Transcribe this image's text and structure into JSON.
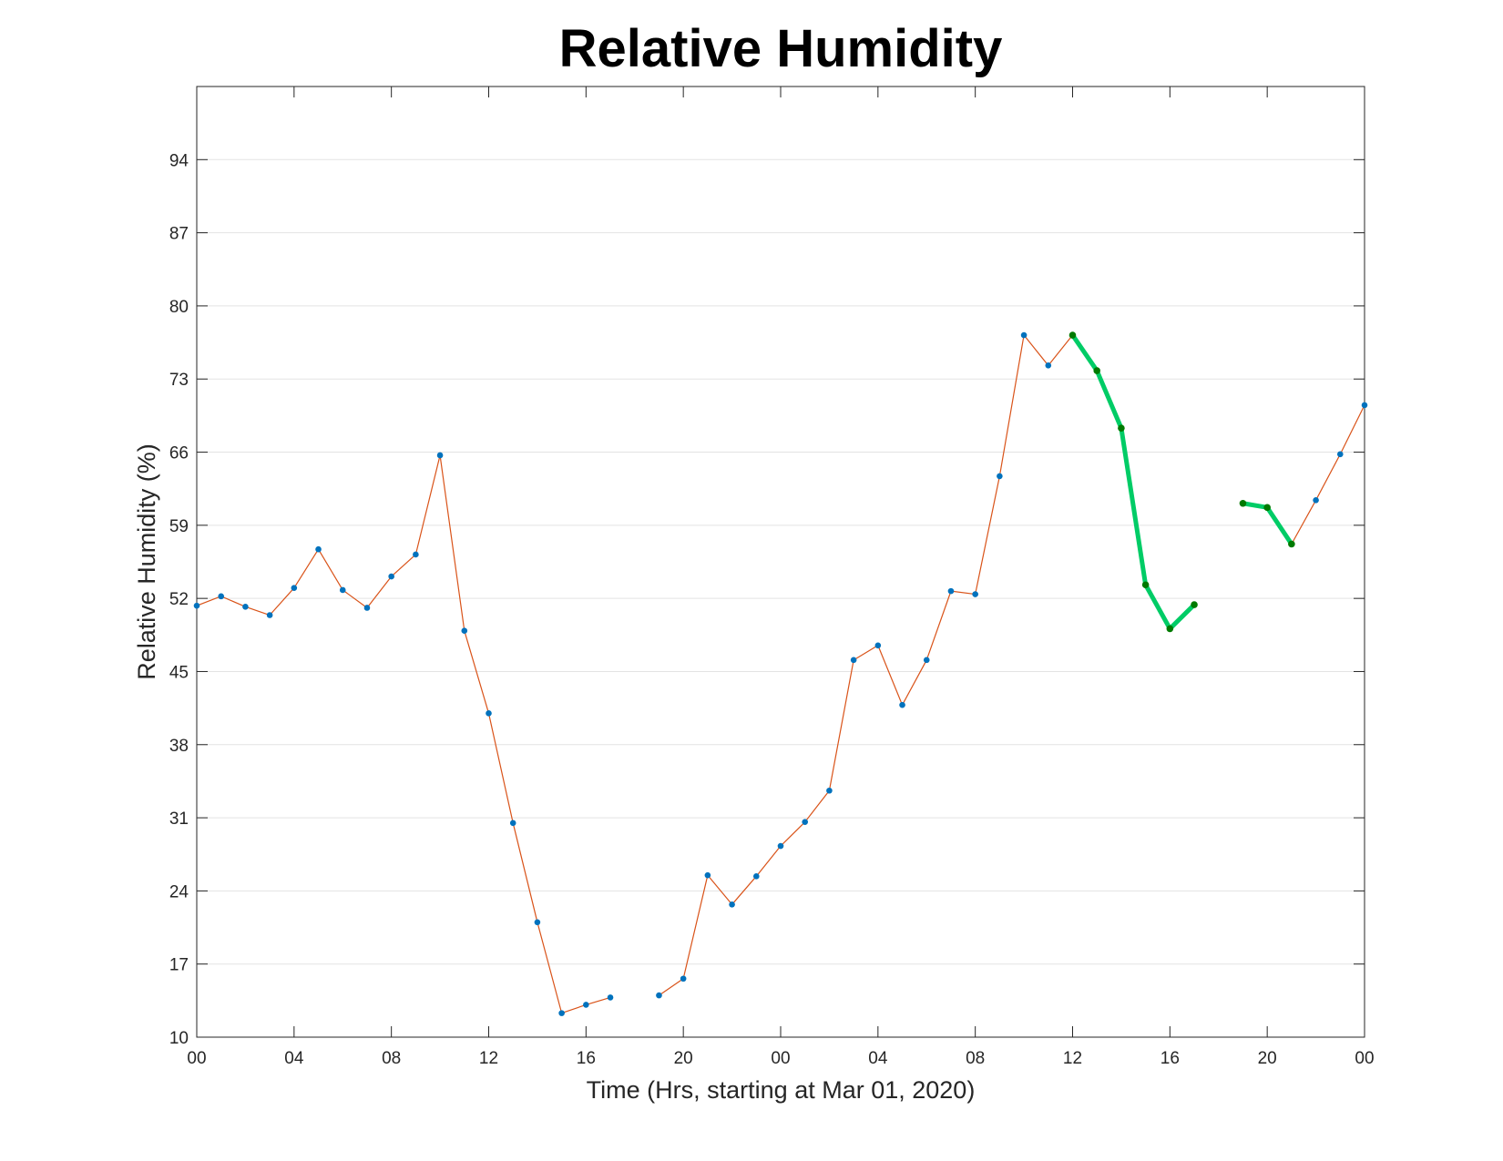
{
  "chart_data": {
    "type": "line",
    "title": "Relative Humidity",
    "xlabel": "Time (Hrs, starting at Mar 01, 2020)",
    "ylabel": "Relative Humidity (%)",
    "ylim": [
      10,
      101
    ],
    "yticks": [
      10,
      17,
      24,
      31,
      38,
      45,
      52,
      59,
      66,
      73,
      80,
      87,
      94
    ],
    "xlim": [
      0,
      48
    ],
    "xticks": [
      0,
      4,
      8,
      12,
      16,
      20,
      24,
      28,
      32,
      36,
      40,
      44,
      48
    ],
    "xtick_labels": [
      "00",
      "04",
      "08",
      "12",
      "16",
      "20",
      "00",
      "04",
      "08",
      "12",
      "16",
      "20",
      "00"
    ],
    "grid": true,
    "colors": {
      "line": "#d95319",
      "marker": "#0072bd",
      "highlight": "#00cc66",
      "highlight_marker": "#007a00"
    },
    "series": [
      {
        "role": "main",
        "x": [
          0,
          1,
          2,
          3,
          4,
          5,
          6,
          7,
          8,
          9,
          10,
          11,
          12,
          13,
          14,
          15,
          16,
          17,
          18,
          19,
          20,
          21,
          22,
          23,
          24,
          25,
          26,
          27,
          28,
          29,
          30,
          31,
          32,
          33,
          34,
          35,
          36,
          37,
          38,
          39,
          40,
          41,
          42,
          43,
          44,
          45,
          46,
          47,
          48
        ],
        "y": [
          51.3,
          52.2,
          51.2,
          50.4,
          53.0,
          56.7,
          52.8,
          51.1,
          54.1,
          56.2,
          65.7,
          48.9,
          41.0,
          30.5,
          21.0,
          12.3,
          13.1,
          13.8,
          null,
          14.0,
          15.6,
          25.5,
          22.7,
          25.4,
          28.3,
          30.6,
          33.6,
          46.1,
          47.5,
          41.8,
          46.1,
          52.7,
          52.4,
          63.7,
          77.2,
          74.3,
          77.2,
          73.8,
          68.3,
          53.3,
          49.1,
          51.4,
          null,
          61.1,
          60.7,
          57.2,
          61.4,
          65.8,
          70.5
        ]
      },
      {
        "role": "highlight",
        "x": [
          36,
          37,
          38,
          39,
          40,
          41,
          42,
          43,
          44,
          45
        ],
        "y": [
          77.2,
          73.8,
          68.3,
          53.3,
          49.1,
          51.4,
          null,
          61.1,
          60.7,
          57.2
        ]
      }
    ]
  }
}
